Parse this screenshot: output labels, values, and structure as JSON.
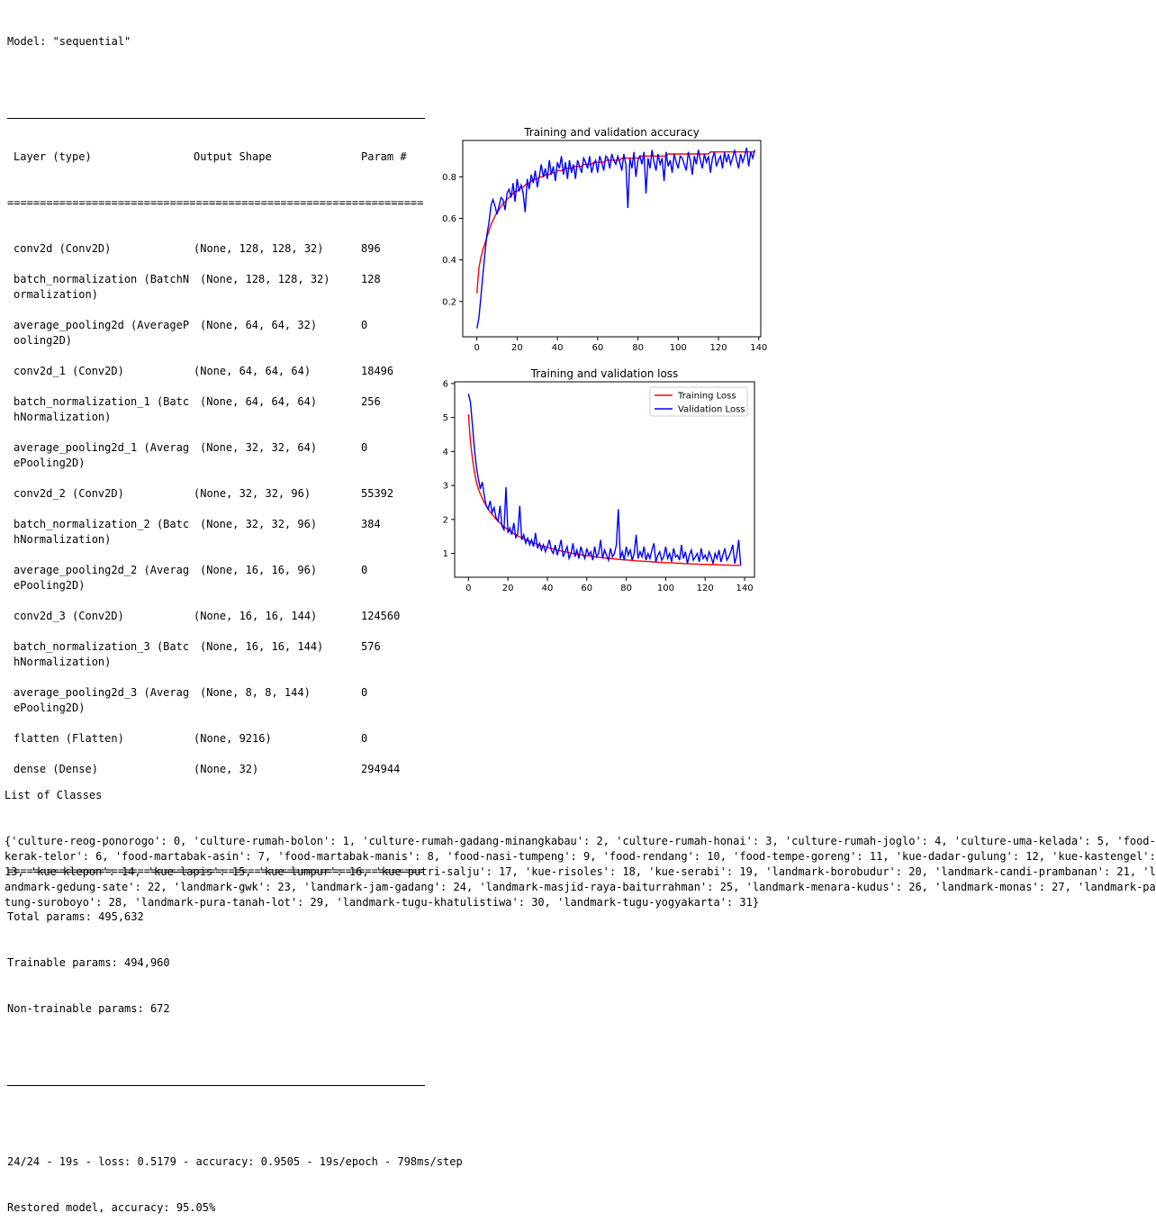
{
  "model_header": "Model: \"sequential\"",
  "columns": [
    "Layer (type)",
    "Output Shape",
    "Param #"
  ],
  "layers": [
    {
      "name": [
        "conv2d (Conv2D)"
      ],
      "shape": "(None, 128, 128, 32)",
      "params": "896"
    },
    {
      "name": [
        "batch_normalization (BatchN",
        "ormalization)"
      ],
      "shape": "(None, 128, 128, 32)",
      "params": "128"
    },
    {
      "name": [
        "average_pooling2d (AverageP",
        "ooling2D)"
      ],
      "shape": "(None, 64, 64, 32)",
      "params": "0"
    },
    {
      "name": [
        "conv2d_1 (Conv2D)"
      ],
      "shape": "(None, 64, 64, 64)",
      "params": "18496"
    },
    {
      "name": [
        "batch_normalization_1 (Batc",
        "hNormalization)"
      ],
      "shape": "(None, 64, 64, 64)",
      "params": "256"
    },
    {
      "name": [
        "average_pooling2d_1 (Averag",
        "ePooling2D)"
      ],
      "shape": "(None, 32, 32, 64)",
      "params": "0"
    },
    {
      "name": [
        "conv2d_2 (Conv2D)"
      ],
      "shape": "(None, 32, 32, 96)",
      "params": "55392"
    },
    {
      "name": [
        "batch_normalization_2 (Batc",
        "hNormalization)"
      ],
      "shape": "(None, 32, 32, 96)",
      "params": "384"
    },
    {
      "name": [
        "average_pooling2d_2 (Averag",
        "ePooling2D)"
      ],
      "shape": "(None, 16, 16, 96)",
      "params": "0"
    },
    {
      "name": [
        "conv2d_3 (Conv2D)"
      ],
      "shape": "(None, 16, 16, 144)",
      "params": "124560"
    },
    {
      "name": [
        "batch_normalization_3 (Batc",
        "hNormalization)"
      ],
      "shape": "(None, 16, 16, 144)",
      "params": "576"
    },
    {
      "name": [
        "average_pooling2d_3 (Averag",
        "ePooling2D)"
      ],
      "shape": "(None, 8, 8, 144)",
      "params": "0"
    },
    {
      "name": [
        "flatten (Flatten)"
      ],
      "shape": "(None, 9216)",
      "params": "0"
    },
    {
      "name": [
        "dense (Dense)"
      ],
      "shape": "(None, 32)",
      "params": "294944"
    }
  ],
  "totals": {
    "total": "Total params: 495,632",
    "trainable": "Trainable params: 494,960",
    "non_trainable": "Non-trainable params: 672"
  },
  "eval_line": "24/24 - 19s - loss: 0.5179 - accuracy: 0.9505 - 19s/epoch - 798ms/step",
  "restored_line": "Restored model, accuracy: 95.05%",
  "classes_title": "List of Classes",
  "classes_lines": [
    "{'culture-reog-ponorogo': 0, 'culture-rumah-bolon': 1, 'culture-rumah-gadang-minangkabau': 2, 'culture-rumah-honai': 3, 'culture-rumah-joglo': 4, 'culture-uma-kelada': 5, 'food-",
    "kerak-telor': 6, 'food-martabak-asin': 7, 'food-martabak-manis': 8, 'food-nasi-tumpeng': 9, 'food-rendang': 10, 'food-tempe-goreng': 11, 'kue-dadar-gulung': 12, 'kue-kastengel':",
    "13, 'kue-klepon': 14, 'kue-lapis': 15, 'kue-lumpur': 16, 'kue-putri-salju': 17, 'kue-risoles': 18, 'kue-serabi': 19, 'landmark-borobudur': 20, 'landmark-candi-prambanan': 21, 'l",
    "andmark-gedung-sate': 22, 'landmark-gwk': 23, 'landmark-jam-gadang': 24, 'landmark-masjid-raya-baiturrahman': 25, 'landmark-menara-kudus': 26, 'landmark-monas': 27, 'landmark-pa",
    "tung-suroboyo': 28, 'landmark-pura-tanah-lot': 29, 'landmark-tugu-khatulistiwa': 30, 'landmark-tugu-yogyakarta': 31}"
  ],
  "chart_data": [
    {
      "type": "line",
      "title": "Training and validation accuracy",
      "xlabel": "",
      "ylabel": "",
      "xlim": [
        -7,
        141
      ],
      "ylim": [
        0.03,
        0.975
      ],
      "xticks": [
        0,
        20,
        40,
        60,
        80,
        100,
        120,
        140
      ],
      "yticks": [
        0.2,
        0.4,
        0.6,
        0.8
      ],
      "ytick_labels": [
        "0.2",
        "0.4",
        "0.6",
        "0.8"
      ],
      "grid": false,
      "legend": null,
      "series": [
        {
          "color": "#ff0000",
          "values": [
            0.24,
            0.36,
            0.41,
            0.45,
            0.48,
            0.51,
            0.54,
            0.57,
            0.59,
            0.61,
            0.63,
            0.64,
            0.66,
            0.67,
            0.68,
            0.69,
            0.7,
            0.71,
            0.72,
            0.73,
            0.73,
            0.74,
            0.75,
            0.75,
            0.76,
            0.77,
            0.77,
            0.78,
            0.78,
            0.79,
            0.79,
            0.8,
            0.8,
            0.8,
            0.81,
            0.81,
            0.81,
            0.82,
            0.82,
            0.82,
            0.83,
            0.83,
            0.83,
            0.83,
            0.84,
            0.84,
            0.84,
            0.84,
            0.85,
            0.85,
            0.85,
            0.85,
            0.85,
            0.86,
            0.86,
            0.86,
            0.86,
            0.86,
            0.87,
            0.87,
            0.87,
            0.87,
            0.87,
            0.87,
            0.88,
            0.88,
            0.88,
            0.88,
            0.88,
            0.88,
            0.88,
            0.88,
            0.89,
            0.89,
            0.89,
            0.89,
            0.89,
            0.89,
            0.89,
            0.89,
            0.89,
            0.9,
            0.9,
            0.9,
            0.9,
            0.9,
            0.9,
            0.9,
            0.9,
            0.9,
            0.9,
            0.9,
            0.9,
            0.9,
            0.9,
            0.91,
            0.91,
            0.91,
            0.91,
            0.91,
            0.91,
            0.91,
            0.91,
            0.91,
            0.91,
            0.91,
            0.91,
            0.91,
            0.91,
            0.91,
            0.91,
            0.91,
            0.91,
            0.91,
            0.91,
            0.91,
            0.92,
            0.92,
            0.92,
            0.92,
            0.92,
            0.92,
            0.92,
            0.92,
            0.92,
            0.92,
            0.92,
            0.92,
            0.92,
            0.92,
            0.92,
            0.92,
            0.92,
            0.92,
            0.92,
            0.92,
            0.92,
            0.92,
            0.92
          ]
        },
        {
          "color": "#0000ff",
          "values": [
            0.07,
            0.12,
            0.22,
            0.33,
            0.43,
            0.52,
            0.58,
            0.66,
            0.69,
            0.66,
            0.62,
            0.66,
            0.7,
            0.69,
            0.64,
            0.72,
            0.74,
            0.7,
            0.77,
            0.68,
            0.79,
            0.73,
            0.76,
            0.72,
            0.63,
            0.79,
            0.74,
            0.81,
            0.77,
            0.83,
            0.75,
            0.8,
            0.86,
            0.8,
            0.84,
            0.79,
            0.88,
            0.81,
            0.85,
            0.78,
            0.87,
            0.84,
            0.9,
            0.81,
            0.87,
            0.79,
            0.88,
            0.82,
            0.86,
            0.79,
            0.88,
            0.85,
            0.82,
            0.89,
            0.87,
            0.84,
            0.9,
            0.82,
            0.86,
            0.88,
            0.82,
            0.9,
            0.87,
            0.83,
            0.9,
            0.89,
            0.84,
            0.91,
            0.88,
            0.86,
            0.9,
            0.87,
            0.83,
            0.91,
            0.86,
            0.65,
            0.89,
            0.84,
            0.92,
            0.8,
            0.88,
            0.9,
            0.86,
            0.92,
            0.72,
            0.89,
            0.84,
            0.93,
            0.87,
            0.83,
            0.91,
            0.86,
            0.89,
            0.78,
            0.92,
            0.85,
            0.88,
            0.82,
            0.91,
            0.87,
            0.84,
            0.9,
            0.89,
            0.86,
            0.83,
            0.92,
            0.88,
            0.81,
            0.9,
            0.86,
            0.93,
            0.88,
            0.84,
            0.91,
            0.87,
            0.9,
            0.82,
            0.89,
            0.92,
            0.85,
            0.88,
            0.9,
            0.84,
            0.92,
            0.87,
            0.91,
            0.86,
            0.89,
            0.93,
            0.88,
            0.84,
            0.91,
            0.87,
            0.9,
            0.94,
            0.85,
            0.92,
            0.89,
            0.93
          ]
        }
      ]
    },
    {
      "type": "line",
      "title": "Training and validation loss",
      "xlabel": "",
      "ylabel": "",
      "xlim": [
        -7,
        145
      ],
      "ylim": [
        0.3,
        6.05
      ],
      "xticks": [
        0,
        20,
        40,
        60,
        80,
        100,
        120,
        140
      ],
      "yticks": [
        1,
        2,
        3,
        4,
        5,
        6
      ],
      "ytick_labels": [
        "1",
        "2",
        "3",
        "4",
        "5",
        "6"
      ],
      "grid": false,
      "legend": "upper right",
      "series": [
        {
          "name": "Training Loss",
          "color": "#ff0000",
          "values": [
            5.1,
            4.3,
            3.8,
            3.4,
            3.1,
            2.9,
            2.75,
            2.62,
            2.5,
            2.4,
            2.3,
            2.22,
            2.15,
            2.08,
            2.01,
            1.95,
            1.9,
            1.84,
            1.79,
            1.74,
            1.7,
            1.66,
            1.62,
            1.58,
            1.55,
            1.52,
            1.49,
            1.46,
            1.43,
            1.41,
            1.38,
            1.36,
            1.34,
            1.31,
            1.29,
            1.27,
            1.25,
            1.23,
            1.21,
            1.2,
            1.18,
            1.16,
            1.15,
            1.13,
            1.12,
            1.1,
            1.09,
            1.07,
            1.06,
            1.05,
            1.04,
            1.02,
            1.01,
            1.0,
            0.99,
            0.98,
            0.97,
            0.96,
            0.95,
            0.94,
            0.93,
            0.93,
            0.92,
            0.91,
            0.9,
            0.9,
            0.89,
            0.88,
            0.87,
            0.87,
            0.86,
            0.86,
            0.85,
            0.84,
            0.84,
            0.83,
            0.83,
            0.82,
            0.82,
            0.81,
            0.81,
            0.8,
            0.8,
            0.79,
            0.79,
            0.78,
            0.78,
            0.78,
            0.77,
            0.77,
            0.76,
            0.76,
            0.76,
            0.75,
            0.75,
            0.75,
            0.74,
            0.74,
            0.74,
            0.73,
            0.73,
            0.73,
            0.72,
            0.72,
            0.72,
            0.71,
            0.71,
            0.71,
            0.71,
            0.7,
            0.7,
            0.7,
            0.7,
            0.69,
            0.69,
            0.69,
            0.69,
            0.68,
            0.68,
            0.68,
            0.68,
            0.68,
            0.67,
            0.67,
            0.67,
            0.67,
            0.67,
            0.66,
            0.66,
            0.66,
            0.66,
            0.66,
            0.66,
            0.65,
            0.65,
            0.65,
            0.65,
            0.65,
            0.65
          ]
        },
        {
          "name": "Validation Loss",
          "color": "#0000ff",
          "values": [
            5.7,
            5.45,
            4.8,
            4.1,
            3.55,
            3.2,
            2.9,
            3.1,
            2.7,
            2.4,
            2.3,
            2.55,
            2.2,
            2.35,
            2.05,
            1.95,
            2.4,
            1.8,
            1.7,
            2.95,
            1.6,
            1.75,
            1.55,
            1.9,
            1.45,
            1.6,
            2.4,
            1.4,
            1.55,
            1.3,
            1.45,
            1.25,
            1.4,
            1.2,
            1.6,
            1.15,
            1.3,
            1.1,
            1.25,
            1.05,
            1.2,
            1.4,
            1.1,
            1.0,
            1.25,
            0.95,
            1.15,
            1.4,
            0.9,
            1.05,
            1.2,
            0.85,
            1.0,
            1.3,
            0.9,
            1.1,
            0.85,
            1.2,
            1.0,
            0.85,
            1.15,
            0.95,
            1.05,
            0.8,
            1.2,
            0.9,
            1.0,
            1.4,
            0.85,
            1.1,
            0.95,
            0.8,
            1.15,
            0.9,
            1.0,
            1.25,
            2.3,
            0.85,
            1.05,
            0.8,
            1.2,
            0.95,
            1.1,
            0.8,
            1.0,
            1.55,
            0.85,
            1.05,
            0.9,
            1.2,
            0.8,
            1.0,
            0.85,
            1.1,
            1.3,
            0.75,
            0.95,
            1.05,
            0.8,
            0.9,
            1.2,
            0.85,
            1.0,
            0.75,
            1.15,
            0.9,
            0.95,
            0.8,
            1.25,
            0.85,
            1.05,
            0.7,
            0.95,
            1.1,
            0.8,
            0.9,
            1.0,
            0.75,
            1.15,
            0.85,
            0.95,
            0.8,
            1.05,
            0.9,
            0.7,
            1.0,
            0.85,
            1.1,
            0.75,
            0.95,
            1.15,
            0.8,
            0.9,
            1.05,
            1.25,
            0.7,
            0.95,
            1.4,
            0.65
          ]
        }
      ]
    }
  ]
}
